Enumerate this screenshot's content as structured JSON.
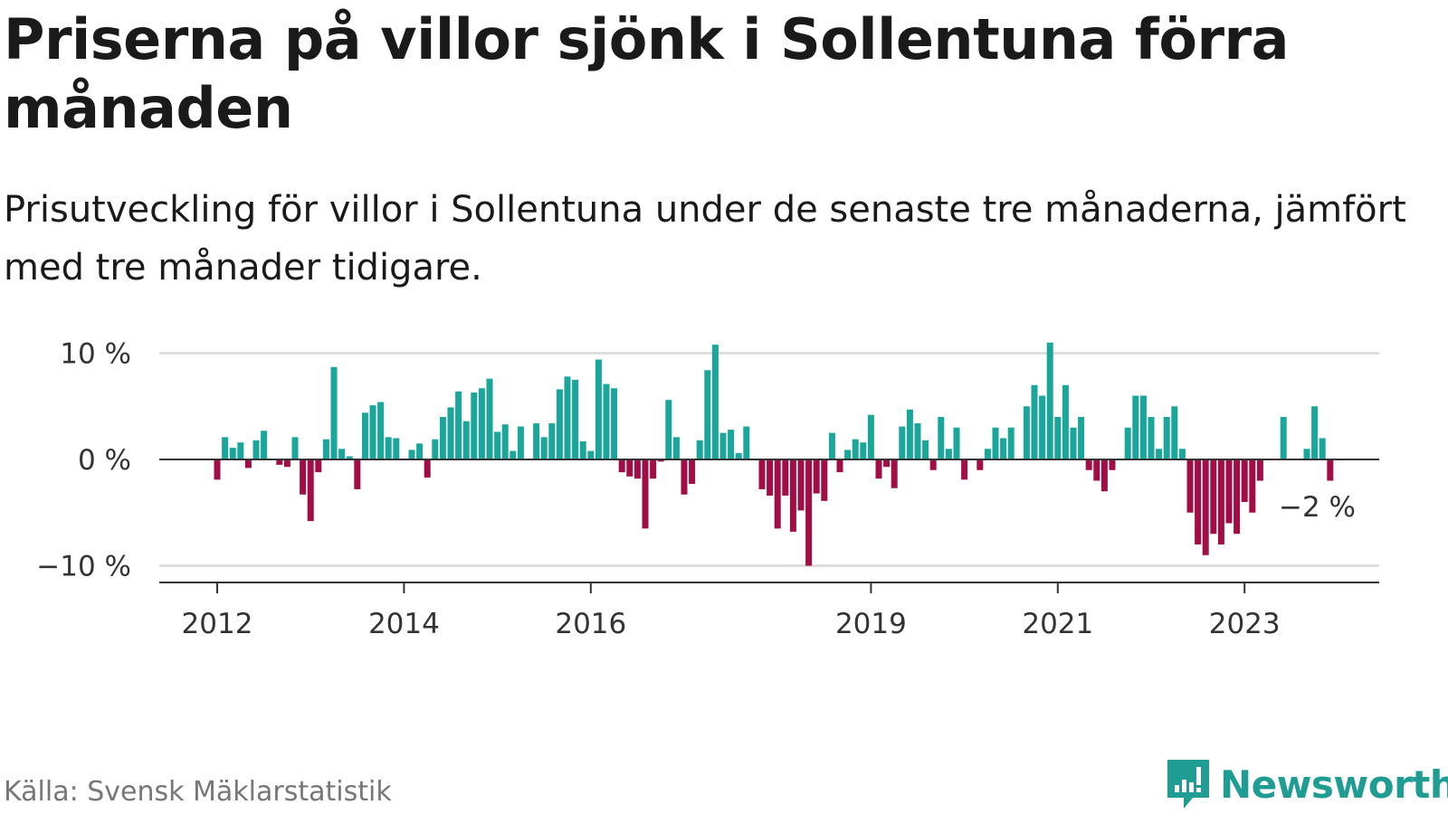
{
  "title": "Priserna på villor sjönk i Sollentuna förra månaden",
  "subtitle": "Prisutveckling för villor i Sollentuna under de senaste tre månaderna, jämfört med tre månader tidigare.",
  "source": "Källa: Svensk Mäklarstatistik",
  "brand": "Newsworthy",
  "colors": {
    "positive": "#1aa69a",
    "negative": "#a10d45",
    "grid": "#dddddd",
    "axis": "#333333",
    "brand": "#1f9d92"
  },
  "chart_data": {
    "type": "bar",
    "title": "Priserna på villor sjönk i Sollentuna förra månaden",
    "xlabel": "",
    "ylabel": "",
    "ylim": [
      -12,
      11
    ],
    "y_ticks": [
      {
        "value": 10,
        "label": "10 %"
      },
      {
        "value": 0,
        "label": "0 %"
      },
      {
        "value": -10,
        "label": "−10 %"
      }
    ],
    "x_ticks": [
      {
        "index": 0,
        "label": "2012"
      },
      {
        "index": 24,
        "label": "2014"
      },
      {
        "index": 48,
        "label": "2016"
      },
      {
        "index": 84,
        "label": "2019"
      },
      {
        "index": 108,
        "label": "2021"
      },
      {
        "index": 132,
        "label": "2023"
      }
    ],
    "start": "2012-01",
    "values": [
      -1.9,
      2.1,
      1.1,
      1.6,
      -0.8,
      1.8,
      2.7,
      null,
      -0.5,
      -0.7,
      2.1,
      -3.3,
      -5.8,
      -1.2,
      1.9,
      8.7,
      1.0,
      0.3,
      -2.8,
      4.4,
      5.1,
      5.4,
      2.1,
      2.0,
      null,
      0.9,
      1.5,
      -1.7,
      1.9,
      4.0,
      4.9,
      6.4,
      3.6,
      6.3,
      6.7,
      7.6,
      2.6,
      3.3,
      0.8,
      3.1,
      null,
      3.4,
      2.1,
      3.4,
      6.6,
      7.8,
      7.5,
      1.7,
      0.8,
      9.4,
      7.1,
      6.7,
      -1.2,
      -1.6,
      -1.8,
      -6.5,
      -1.8,
      -0.2,
      5.6,
      2.1,
      -3.3,
      -2.3,
      1.8,
      8.4,
      10.8,
      2.5,
      2.8,
      0.6,
      3.1,
      null,
      -2.8,
      -3.4,
      -6.5,
      -3.4,
      -6.8,
      -4.8,
      -10.0,
      -3.2,
      -3.9,
      2.5,
      -1.2,
      0.9,
      1.9,
      1.6,
      4.2,
      -1.8,
      -0.7,
      -2.7,
      3.1,
      4.7,
      3.4,
      1.8,
      -1.0,
      4.0,
      1.0,
      3.0,
      -1.9,
      null,
      -1.0,
      1.0,
      3.0,
      2.0,
      3.0,
      null,
      5.0,
      7.0,
      6.0,
      11.0,
      4.0,
      7.0,
      3.0,
      4.0,
      -1.0,
      -2.0,
      -3.0,
      -1.0,
      null,
      3.0,
      6.0,
      6.0,
      4.0,
      1.0,
      4.0,
      5.0,
      1.0,
      -5.0,
      -8.0,
      -9.0,
      -7.0,
      -8.0,
      -6.0,
      -7.0,
      -4.0,
      -5.0,
      -2.0,
      null,
      null,
      4.0,
      null,
      null,
      1.0,
      5.0,
      2.0,
      -2.0
    ],
    "last_value_label": "−2 %"
  }
}
